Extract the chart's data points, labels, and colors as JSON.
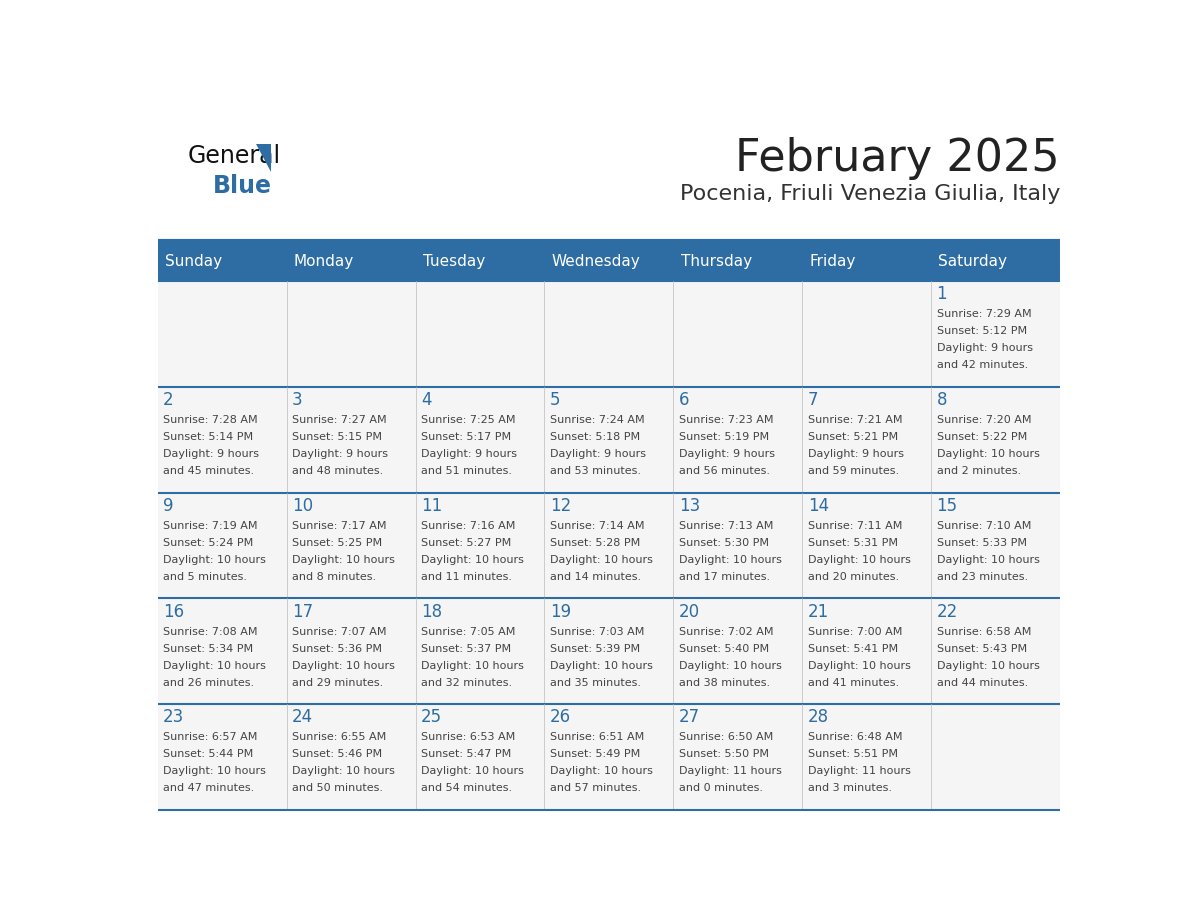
{
  "title": "February 2025",
  "subtitle": "Pocenia, Friuli Venezia Giulia, Italy",
  "header_color": "#2E6DA4",
  "header_text_color": "#FFFFFF",
  "day_names": [
    "Sunday",
    "Monday",
    "Tuesday",
    "Wednesday",
    "Thursday",
    "Friday",
    "Saturday"
  ],
  "cell_bg_color": "#F5F5F5",
  "grid_line_color": "#2E6DA4",
  "day_number_color": "#2E6DA4",
  "cell_text_color": "#444444",
  "logo_color": "#2E6DA4",
  "week1": [
    {
      "day": "",
      "info": ""
    },
    {
      "day": "",
      "info": ""
    },
    {
      "day": "",
      "info": ""
    },
    {
      "day": "",
      "info": ""
    },
    {
      "day": "",
      "info": ""
    },
    {
      "day": "",
      "info": ""
    },
    {
      "day": "1",
      "info": "Sunrise: 7:29 AM\nSunset: 5:12 PM\nDaylight: 9 hours\nand 42 minutes."
    }
  ],
  "week2": [
    {
      "day": "2",
      "info": "Sunrise: 7:28 AM\nSunset: 5:14 PM\nDaylight: 9 hours\nand 45 minutes."
    },
    {
      "day": "3",
      "info": "Sunrise: 7:27 AM\nSunset: 5:15 PM\nDaylight: 9 hours\nand 48 minutes."
    },
    {
      "day": "4",
      "info": "Sunrise: 7:25 AM\nSunset: 5:17 PM\nDaylight: 9 hours\nand 51 minutes."
    },
    {
      "day": "5",
      "info": "Sunrise: 7:24 AM\nSunset: 5:18 PM\nDaylight: 9 hours\nand 53 minutes."
    },
    {
      "day": "6",
      "info": "Sunrise: 7:23 AM\nSunset: 5:19 PM\nDaylight: 9 hours\nand 56 minutes."
    },
    {
      "day": "7",
      "info": "Sunrise: 7:21 AM\nSunset: 5:21 PM\nDaylight: 9 hours\nand 59 minutes."
    },
    {
      "day": "8",
      "info": "Sunrise: 7:20 AM\nSunset: 5:22 PM\nDaylight: 10 hours\nand 2 minutes."
    }
  ],
  "week3": [
    {
      "day": "9",
      "info": "Sunrise: 7:19 AM\nSunset: 5:24 PM\nDaylight: 10 hours\nand 5 minutes."
    },
    {
      "day": "10",
      "info": "Sunrise: 7:17 AM\nSunset: 5:25 PM\nDaylight: 10 hours\nand 8 minutes."
    },
    {
      "day": "11",
      "info": "Sunrise: 7:16 AM\nSunset: 5:27 PM\nDaylight: 10 hours\nand 11 minutes."
    },
    {
      "day": "12",
      "info": "Sunrise: 7:14 AM\nSunset: 5:28 PM\nDaylight: 10 hours\nand 14 minutes."
    },
    {
      "day": "13",
      "info": "Sunrise: 7:13 AM\nSunset: 5:30 PM\nDaylight: 10 hours\nand 17 minutes."
    },
    {
      "day": "14",
      "info": "Sunrise: 7:11 AM\nSunset: 5:31 PM\nDaylight: 10 hours\nand 20 minutes."
    },
    {
      "day": "15",
      "info": "Sunrise: 7:10 AM\nSunset: 5:33 PM\nDaylight: 10 hours\nand 23 minutes."
    }
  ],
  "week4": [
    {
      "day": "16",
      "info": "Sunrise: 7:08 AM\nSunset: 5:34 PM\nDaylight: 10 hours\nand 26 minutes."
    },
    {
      "day": "17",
      "info": "Sunrise: 7:07 AM\nSunset: 5:36 PM\nDaylight: 10 hours\nand 29 minutes."
    },
    {
      "day": "18",
      "info": "Sunrise: 7:05 AM\nSunset: 5:37 PM\nDaylight: 10 hours\nand 32 minutes."
    },
    {
      "day": "19",
      "info": "Sunrise: 7:03 AM\nSunset: 5:39 PM\nDaylight: 10 hours\nand 35 minutes."
    },
    {
      "day": "20",
      "info": "Sunrise: 7:02 AM\nSunset: 5:40 PM\nDaylight: 10 hours\nand 38 minutes."
    },
    {
      "day": "21",
      "info": "Sunrise: 7:00 AM\nSunset: 5:41 PM\nDaylight: 10 hours\nand 41 minutes."
    },
    {
      "day": "22",
      "info": "Sunrise: 6:58 AM\nSunset: 5:43 PM\nDaylight: 10 hours\nand 44 minutes."
    }
  ],
  "week5": [
    {
      "day": "23",
      "info": "Sunrise: 6:57 AM\nSunset: 5:44 PM\nDaylight: 10 hours\nand 47 minutes."
    },
    {
      "day": "24",
      "info": "Sunrise: 6:55 AM\nSunset: 5:46 PM\nDaylight: 10 hours\nand 50 minutes."
    },
    {
      "day": "25",
      "info": "Sunrise: 6:53 AM\nSunset: 5:47 PM\nDaylight: 10 hours\nand 54 minutes."
    },
    {
      "day": "26",
      "info": "Sunrise: 6:51 AM\nSunset: 5:49 PM\nDaylight: 10 hours\nand 57 minutes."
    },
    {
      "day": "27",
      "info": "Sunrise: 6:50 AM\nSunset: 5:50 PM\nDaylight: 11 hours\nand 0 minutes."
    },
    {
      "day": "28",
      "info": "Sunrise: 6:48 AM\nSunset: 5:51 PM\nDaylight: 11 hours\nand 3 minutes."
    },
    {
      "day": "",
      "info": ""
    }
  ]
}
